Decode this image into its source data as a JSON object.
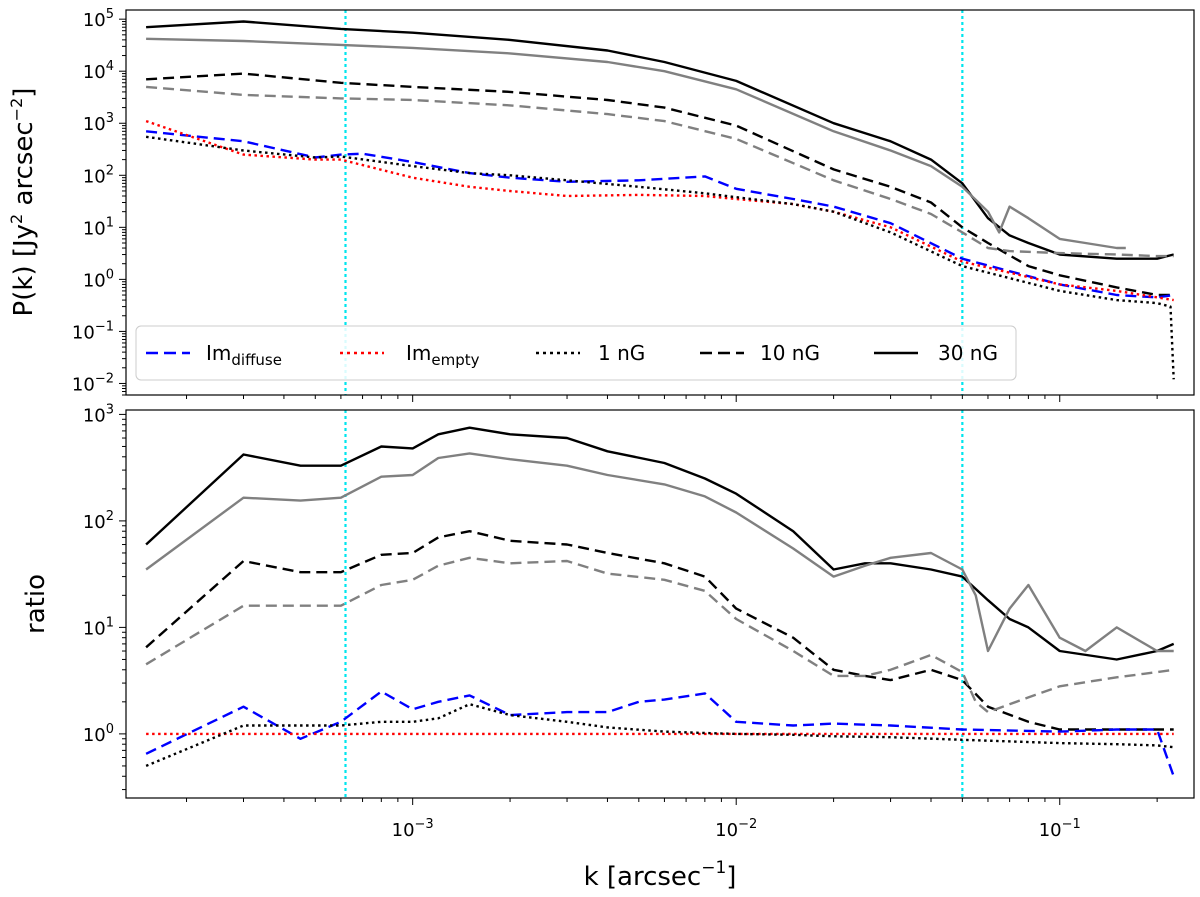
{
  "chart_data": [
    {
      "panel": "top",
      "type": "line",
      "title": "",
      "xscale": "log",
      "yscale": "log",
      "xlim": [
        0.00013,
        0.26
      ],
      "ylim": [
        0.006,
        150000
      ],
      "ylabel_prefix": "P(k) [Jy",
      "ylabel_sup": "2",
      "ylabel_mid": " arcsec",
      "ylabel_sup2": "−2",
      "ylabel_suffix": "]",
      "yticks": [
        {
          "value": 100000,
          "base": "10",
          "exp": "5"
        },
        {
          "value": 10000,
          "base": "10",
          "exp": "4"
        },
        {
          "value": 1000,
          "base": "10",
          "exp": "3"
        },
        {
          "value": 100,
          "base": "10",
          "exp": "2"
        },
        {
          "value": 10,
          "base": "10",
          "exp": "1"
        },
        {
          "value": 1,
          "base": "10",
          "exp": "0"
        },
        {
          "value": 0.1,
          "base": "10",
          "exp": "−1"
        },
        {
          "value": 0.01,
          "base": "10",
          "exp": "−2"
        }
      ],
      "vlines": [
        0.00062,
        0.05
      ],
      "legend": {
        "placement": "lower-left",
        "entries": [
          {
            "label": "Im",
            "sub": "diffuse",
            "color": "#0000ff",
            "style": "dashed"
          },
          {
            "label": "Im",
            "sub": "empty",
            "color": "#ff0000",
            "style": "dotted"
          },
          {
            "label": "1 nG",
            "sub": "",
            "color": "#000000",
            "style": "dotted"
          },
          {
            "label": "10 nG",
            "sub": "",
            "color": "#000000",
            "style": "dashed"
          },
          {
            "label": "30 nG",
            "sub": "",
            "color": "#000000",
            "style": "solid"
          }
        ]
      },
      "series": [
        {
          "name": "30 nG",
          "color": "#000000",
          "style": "solid",
          "x": [
            0.00015,
            0.0003,
            0.0006,
            0.001,
            0.002,
            0.004,
            0.006,
            0.01,
            0.02,
            0.03,
            0.04,
            0.05,
            0.06,
            0.07,
            0.08,
            0.1,
            0.15,
            0.2,
            0.225
          ],
          "y": [
            70000,
            90000,
            65000,
            55000,
            40000,
            25000,
            15000,
            6500,
            1000,
            450,
            200,
            70,
            15,
            7,
            5,
            3,
            2.5,
            2.5,
            3
          ]
        },
        {
          "name": "30 nG (grey)",
          "color": "#808080",
          "style": "solid",
          "x": [
            0.00015,
            0.0003,
            0.0006,
            0.001,
            0.002,
            0.004,
            0.006,
            0.01,
            0.02,
            0.03,
            0.04,
            0.05,
            0.06,
            0.065,
            0.07,
            0.08,
            0.1,
            0.12,
            0.15,
            0.16
          ],
          "y": [
            42000,
            38000,
            32000,
            28000,
            22000,
            15000,
            10000,
            4500,
            700,
            300,
            150,
            60,
            20,
            8,
            25,
            15,
            6,
            5,
            4,
            4
          ]
        },
        {
          "name": "10 nG",
          "color": "#000000",
          "style": "dashed",
          "x": [
            0.00015,
            0.0003,
            0.0006,
            0.001,
            0.002,
            0.004,
            0.006,
            0.01,
            0.02,
            0.03,
            0.04,
            0.05,
            0.06,
            0.08,
            0.1,
            0.15,
            0.2,
            0.225
          ],
          "y": [
            7000,
            9000,
            6000,
            5000,
            4000,
            2800,
            2000,
            900,
            130,
            60,
            30,
            10,
            5,
            1.8,
            1.2,
            0.7,
            0.5,
            0.5
          ]
        },
        {
          "name": "10 nG (grey)",
          "color": "#808080",
          "style": "dashed",
          "x": [
            0.00015,
            0.0003,
            0.0006,
            0.001,
            0.002,
            0.004,
            0.006,
            0.01,
            0.02,
            0.03,
            0.04,
            0.05,
            0.06,
            0.07,
            0.1,
            0.15,
            0.2,
            0.225
          ],
          "y": [
            5000,
            3500,
            3000,
            2800,
            2200,
            1500,
            1100,
            500,
            80,
            35,
            18,
            8,
            4,
            3.5,
            3.2,
            3,
            2.8,
            2.8
          ]
        },
        {
          "name": "Im_diffuse",
          "color": "#0000ff",
          "style": "dashed",
          "x": [
            0.00015,
            0.0003,
            0.0005,
            0.0006,
            0.0007,
            0.001,
            0.0015,
            0.002,
            0.003,
            0.005,
            0.008,
            0.01,
            0.015,
            0.02,
            0.03,
            0.05,
            0.1,
            0.15,
            0.2,
            0.225
          ],
          "y": [
            700,
            450,
            220,
            250,
            260,
            180,
            110,
            90,
            75,
            80,
            95,
            55,
            35,
            25,
            12,
            2.5,
            0.8,
            0.5,
            0.45,
            0.5
          ]
        },
        {
          "name": "Im_empty",
          "color": "#ff0000",
          "style": "dotted",
          "x": [
            0.00015,
            0.0003,
            0.0005,
            0.0006,
            0.001,
            0.0015,
            0.002,
            0.003,
            0.005,
            0.008,
            0.01,
            0.015,
            0.02,
            0.03,
            0.05,
            0.1,
            0.15,
            0.2,
            0.225
          ],
          "y": [
            1100,
            250,
            200,
            200,
            90,
            60,
            50,
            40,
            42,
            40,
            35,
            28,
            20,
            10,
            2.2,
            0.8,
            0.6,
            0.45,
            0.4
          ]
        },
        {
          "name": "1 nG",
          "color": "#000000",
          "style": "dotted",
          "x": [
            0.00015,
            0.0003,
            0.0005,
            0.0006,
            0.001,
            0.0015,
            0.002,
            0.003,
            0.005,
            0.008,
            0.01,
            0.015,
            0.02,
            0.03,
            0.05,
            0.1,
            0.15,
            0.2,
            0.22,
            0.225
          ],
          "y": [
            550,
            300,
            220,
            230,
            150,
            110,
            100,
            80,
            60,
            45,
            38,
            28,
            20,
            8,
            1.8,
            0.6,
            0.4,
            0.35,
            0.3,
            0.012
          ]
        }
      ]
    },
    {
      "panel": "bottom",
      "type": "line",
      "title": "",
      "xscale": "log",
      "yscale": "log",
      "xlim": [
        0.00013,
        0.26
      ],
      "ylim": [
        0.25,
        1100
      ],
      "xlabel_prefix": "k [arcsec",
      "xlabel_sup": "−1",
      "xlabel_suffix": "]",
      "ylabel": "ratio",
      "xticks": [
        {
          "value": 0.001,
          "base": "10",
          "exp": "−3"
        },
        {
          "value": 0.01,
          "base": "10",
          "exp": "−2"
        },
        {
          "value": 0.1,
          "base": "10",
          "exp": "−1"
        }
      ],
      "yticks": [
        {
          "value": 1000,
          "base": "10",
          "exp": "3"
        },
        {
          "value": 100,
          "base": "10",
          "exp": "2"
        },
        {
          "value": 10,
          "base": "10",
          "exp": "1"
        },
        {
          "value": 1,
          "base": "10",
          "exp": "0"
        }
      ],
      "vlines": [
        0.00062,
        0.05
      ],
      "series": [
        {
          "name": "30 nG",
          "color": "#000000",
          "style": "solid",
          "x": [
            0.00015,
            0.0003,
            0.00045,
            0.0006,
            0.0008,
            0.001,
            0.0012,
            0.0015,
            0.002,
            0.003,
            0.004,
            0.006,
            0.008,
            0.01,
            0.015,
            0.02,
            0.025,
            0.03,
            0.04,
            0.05,
            0.06,
            0.07,
            0.08,
            0.1,
            0.15,
            0.2,
            0.225
          ],
          "y": [
            60,
            420,
            330,
            330,
            500,
            480,
            650,
            750,
            650,
            600,
            450,
            350,
            250,
            180,
            80,
            35,
            40,
            40,
            35,
            30,
            18,
            12,
            10,
            6,
            5,
            6,
            7
          ]
        },
        {
          "name": "30 nG (grey)",
          "color": "#808080",
          "style": "solid",
          "x": [
            0.00015,
            0.0003,
            0.00045,
            0.0006,
            0.0008,
            0.001,
            0.0012,
            0.0015,
            0.002,
            0.003,
            0.004,
            0.006,
            0.008,
            0.01,
            0.015,
            0.02,
            0.025,
            0.03,
            0.04,
            0.05,
            0.055,
            0.06,
            0.07,
            0.08,
            0.1,
            0.12,
            0.15,
            0.2,
            0.225
          ],
          "y": [
            35,
            165,
            155,
            165,
            260,
            270,
            390,
            430,
            380,
            330,
            270,
            220,
            170,
            120,
            55,
            30,
            38,
            45,
            50,
            35,
            20,
            6,
            15,
            25,
            8,
            6,
            10,
            6,
            6
          ]
        },
        {
          "name": "10 nG",
          "color": "#000000",
          "style": "dashed",
          "x": [
            0.00015,
            0.0003,
            0.00045,
            0.0006,
            0.0008,
            0.001,
            0.0012,
            0.0015,
            0.002,
            0.003,
            0.004,
            0.006,
            0.008,
            0.01,
            0.015,
            0.02,
            0.025,
            0.03,
            0.04,
            0.05,
            0.06,
            0.08,
            0.1,
            0.15,
            0.2,
            0.225
          ],
          "y": [
            6.5,
            42,
            33,
            33,
            48,
            50,
            70,
            80,
            65,
            60,
            50,
            40,
            30,
            15,
            8,
            4,
            3.5,
            3.2,
            4,
            3.2,
            1.8,
            1.3,
            1.1,
            1.1,
            1.1,
            1.1
          ]
        },
        {
          "name": "10 nG (grey)",
          "color": "#808080",
          "style": "dashed",
          "x": [
            0.00015,
            0.0003,
            0.00045,
            0.0006,
            0.0008,
            0.001,
            0.0012,
            0.0015,
            0.002,
            0.003,
            0.004,
            0.006,
            0.008,
            0.01,
            0.015,
            0.02,
            0.025,
            0.03,
            0.04,
            0.05,
            0.055,
            0.06,
            0.08,
            0.1,
            0.15,
            0.2,
            0.225
          ],
          "y": [
            4.5,
            16,
            16,
            16,
            25,
            28,
            38,
            45,
            40,
            42,
            32,
            28,
            22,
            12,
            6,
            3.5,
            3.5,
            4,
            5.5,
            3.8,
            2,
            1.6,
            2.2,
            2.8,
            3.4,
            3.8,
            4
          ]
        },
        {
          "name": "Im_diffuse",
          "color": "#0000ff",
          "style": "dashed",
          "x": [
            0.00015,
            0.0003,
            0.00045,
            0.0006,
            0.0008,
            0.001,
            0.0012,
            0.0015,
            0.002,
            0.003,
            0.004,
            0.005,
            0.006,
            0.008,
            0.01,
            0.015,
            0.02,
            0.03,
            0.05,
            0.1,
            0.15,
            0.2,
            0.225
          ],
          "y": [
            0.65,
            1.8,
            0.9,
            1.3,
            2.5,
            1.7,
            2,
            2.3,
            1.5,
            1.6,
            1.6,
            2,
            2.1,
            2.4,
            1.3,
            1.2,
            1.25,
            1.2,
            1.1,
            1.05,
            1.1,
            1.1,
            0.4
          ]
        },
        {
          "name": "Im_empty",
          "color": "#ff0000",
          "style": "dotted",
          "x": [
            0.00015,
            0.225
          ],
          "y": [
            1,
            1
          ]
        },
        {
          "name": "1 nG",
          "color": "#000000",
          "style": "dotted",
          "x": [
            0.00015,
            0.0003,
            0.00045,
            0.0006,
            0.0008,
            0.001,
            0.0012,
            0.0015,
            0.002,
            0.003,
            0.004,
            0.006,
            0.008,
            0.01,
            0.015,
            0.02,
            0.03,
            0.05,
            0.1,
            0.15,
            0.2,
            0.225
          ],
          "y": [
            0.5,
            1.2,
            1.2,
            1.2,
            1.3,
            1.3,
            1.4,
            1.9,
            1.5,
            1.3,
            1.15,
            1.05,
            1.02,
            1,
            0.98,
            0.95,
            0.93,
            0.88,
            0.82,
            0.8,
            0.78,
            0.75
          ]
        }
      ]
    }
  ]
}
